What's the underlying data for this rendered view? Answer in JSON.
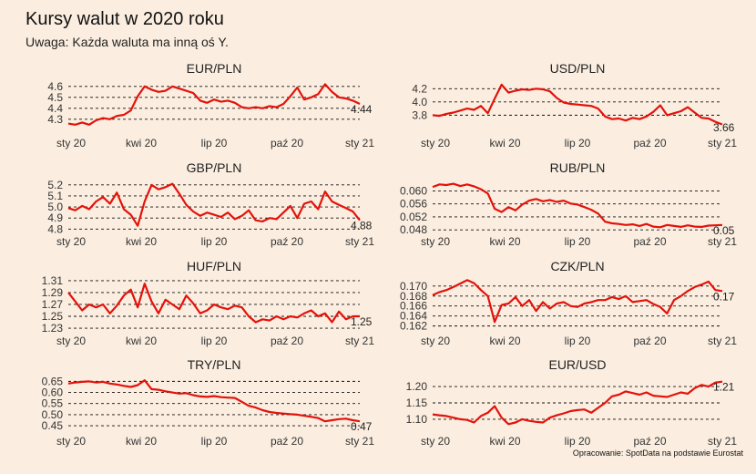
{
  "title": "Kursy walut w 2020 roku",
  "subtitle": "Uwaga: Każda waluta ma inną oś Y.",
  "source": "Opracowanie: SpotData na podstawie Eurostat",
  "colors": {
    "background": "#fbeee0",
    "series": "#e3120b"
  },
  "chart_data": [
    {
      "type": "line",
      "title": "EUR/PLN",
      "x_ticks": [
        "sty 20",
        "kwi 20",
        "lip 20",
        "paź 20",
        "sty 21"
      ],
      "y_ticks": [
        "4.3",
        "4.4",
        "4.5",
        "4.6"
      ],
      "y_tick_values": [
        4.3,
        4.4,
        4.5,
        4.6
      ],
      "ylim": [
        4.24,
        4.64
      ],
      "end_label": "4.44",
      "values": [
        4.26,
        4.25,
        4.27,
        4.25,
        4.29,
        4.31,
        4.3,
        4.33,
        4.34,
        4.38,
        4.51,
        4.6,
        4.57,
        4.55,
        4.56,
        4.6,
        4.58,
        4.56,
        4.54,
        4.47,
        4.45,
        4.48,
        4.46,
        4.47,
        4.45,
        4.41,
        4.4,
        4.41,
        4.4,
        4.42,
        4.41,
        4.44,
        4.51,
        4.59,
        4.48,
        4.5,
        4.53,
        4.62,
        4.55,
        4.5,
        4.49,
        4.47,
        4.44
      ]
    },
    {
      "type": "line",
      "title": "USD/PLN",
      "x_ticks": [
        "sty 20",
        "kwi 20",
        "lip 20",
        "paź 20",
        "sty 21"
      ],
      "y_ticks": [
        "3.8",
        "4.0",
        "4.2"
      ],
      "y_tick_values": [
        3.8,
        4.0,
        4.2
      ],
      "ylim": [
        3.64,
        4.3
      ],
      "end_label": "3.66",
      "values": [
        3.8,
        3.79,
        3.82,
        3.84,
        3.87,
        3.9,
        3.88,
        3.94,
        3.83,
        4.05,
        4.26,
        4.14,
        4.17,
        4.19,
        4.18,
        4.2,
        4.19,
        4.16,
        4.06,
        3.99,
        3.97,
        3.96,
        3.95,
        3.94,
        3.9,
        3.78,
        3.74,
        3.75,
        3.72,
        3.76,
        3.74,
        3.78,
        3.85,
        3.95,
        3.8,
        3.83,
        3.86,
        3.92,
        3.84,
        3.76,
        3.75,
        3.7,
        3.66
      ]
    },
    {
      "type": "line",
      "title": "GBP/PLN",
      "x_ticks": [
        "sty 20",
        "kwi 20",
        "lip 20",
        "paź 20",
        "sty 21"
      ],
      "y_ticks": [
        "4.8",
        "4.9",
        "5.0",
        "5.1",
        "5.2"
      ],
      "y_tick_values": [
        4.8,
        4.9,
        5.0,
        5.1,
        5.2
      ],
      "ylim": [
        4.77,
        5.24
      ],
      "end_label": "4.88",
      "values": [
        4.99,
        4.97,
        5.01,
        4.98,
        5.05,
        5.09,
        5.03,
        5.13,
        4.98,
        4.93,
        4.83,
        5.05,
        5.2,
        5.16,
        5.18,
        5.21,
        5.12,
        5.02,
        4.96,
        4.92,
        4.95,
        4.93,
        4.91,
        4.95,
        4.89,
        4.92,
        4.97,
        4.88,
        4.87,
        4.9,
        4.89,
        4.95,
        5.01,
        4.9,
        5.03,
        5.05,
        4.98,
        5.14,
        5.05,
        5.02,
        4.99,
        4.96,
        4.88
      ]
    },
    {
      "type": "line",
      "title": "RUB/PLN",
      "x_ticks": [
        "sty 20",
        "kwi 20",
        "lip 20",
        "paź 20",
        "sty 21"
      ],
      "y_ticks": [
        "0.048",
        "0.052",
        "0.056",
        "0.060"
      ],
      "y_tick_values": [
        0.048,
        0.052,
        0.056,
        0.06
      ],
      "ylim": [
        0.0472,
        0.0632
      ],
      "end_label": "0.05",
      "values": [
        0.0612,
        0.062,
        0.0618,
        0.0622,
        0.0615,
        0.062,
        0.0614,
        0.0605,
        0.0592,
        0.0545,
        0.0535,
        0.055,
        0.054,
        0.0558,
        0.057,
        0.0575,
        0.0568,
        0.0572,
        0.0566,
        0.057,
        0.0561,
        0.0558,
        0.055,
        0.0542,
        0.053,
        0.0505,
        0.05,
        0.0498,
        0.0495,
        0.0497,
        0.0492,
        0.0498,
        0.049,
        0.0488,
        0.0495,
        0.0492,
        0.0489,
        0.0494,
        0.049,
        0.0489,
        0.0493,
        0.0494,
        0.0495
      ]
    },
    {
      "type": "line",
      "title": "HUF/PLN",
      "x_ticks": [
        "sty 20",
        "kwi 20",
        "lip 20",
        "paź 20",
        "sty 21"
      ],
      "y_ticks": [
        "1.23",
        "1.25",
        "1.27",
        "1.29",
        "1.31"
      ],
      "y_tick_values": [
        1.23,
        1.25,
        1.27,
        1.29,
        1.31
      ],
      "ylim": [
        1.227,
        1.316
      ],
      "end_label": "1.25",
      "values": [
        1.29,
        1.275,
        1.26,
        1.27,
        1.265,
        1.27,
        1.255,
        1.268,
        1.285,
        1.295,
        1.265,
        1.305,
        1.275,
        1.255,
        1.278,
        1.27,
        1.262,
        1.285,
        1.272,
        1.255,
        1.26,
        1.27,
        1.265,
        1.262,
        1.268,
        1.265,
        1.25,
        1.24,
        1.245,
        1.243,
        1.25,
        1.245,
        1.25,
        1.248,
        1.255,
        1.26,
        1.25,
        1.255,
        1.24,
        1.258,
        1.245,
        1.25,
        1.25
      ]
    },
    {
      "type": "line",
      "title": "CZK/PLN",
      "x_ticks": [
        "sty 20",
        "kwi 20",
        "lip 20",
        "paź 20",
        "sty 21"
      ],
      "y_ticks": [
        "0.162",
        "0.164",
        "0.166",
        "0.168",
        "0.170"
      ],
      "y_tick_values": [
        0.162,
        0.164,
        0.166,
        0.168,
        0.17
      ],
      "ylim": [
        0.1612,
        0.1718
      ],
      "end_label": "0.17",
      "values": [
        0.1682,
        0.1688,
        0.1692,
        0.1698,
        0.1705,
        0.1712,
        0.1706,
        0.1692,
        0.168,
        0.1628,
        0.1662,
        0.1665,
        0.1678,
        0.166,
        0.1672,
        0.165,
        0.1668,
        0.1655,
        0.1665,
        0.1668,
        0.166,
        0.1658,
        0.1665,
        0.1668,
        0.1672,
        0.1672,
        0.1678,
        0.1674,
        0.168,
        0.1668,
        0.167,
        0.1672,
        0.1664,
        0.1658,
        0.1645,
        0.1672,
        0.168,
        0.169,
        0.1698,
        0.1703,
        0.1709,
        0.1692,
        0.169
      ]
    },
    {
      "type": "line",
      "title": "TRY/PLN",
      "x_ticks": [
        "sty 20",
        "kwi 20",
        "lip 20",
        "paź 20",
        "sty 21"
      ],
      "y_ticks": [
        "0.45",
        "0.50",
        "0.55",
        "0.60",
        "0.65"
      ],
      "y_tick_values": [
        0.45,
        0.5,
        0.55,
        0.6,
        0.65
      ],
      "ylim": [
        0.438,
        0.668
      ],
      "end_label": "0.47",
      "values": [
        0.64,
        0.645,
        0.648,
        0.65,
        0.645,
        0.648,
        0.64,
        0.636,
        0.63,
        0.625,
        0.633,
        0.655,
        0.615,
        0.612,
        0.605,
        0.6,
        0.595,
        0.597,
        0.588,
        0.582,
        0.58,
        0.584,
        0.579,
        0.577,
        0.575,
        0.558,
        0.54,
        0.532,
        0.52,
        0.512,
        0.508,
        0.505,
        0.502,
        0.5,
        0.495,
        0.49,
        0.485,
        0.47,
        0.475,
        0.48,
        0.482,
        0.475,
        0.47
      ]
    },
    {
      "type": "line",
      "title": "EUR/USD",
      "x_ticks": [
        "sty 20",
        "kwi 20",
        "lip 20",
        "paź 20",
        "sty 21"
      ],
      "y_ticks": [
        "1.10",
        "1.15",
        "1.20"
      ],
      "y_tick_values": [
        1.1,
        1.15,
        1.2
      ],
      "ylim": [
        1.072,
        1.228
      ],
      "end_label": "1.21",
      "values": [
        1.115,
        1.112,
        1.11,
        1.105,
        1.1,
        1.098,
        1.09,
        1.11,
        1.12,
        1.14,
        1.105,
        1.085,
        1.09,
        1.1,
        1.095,
        1.092,
        1.09,
        1.105,
        1.112,
        1.118,
        1.125,
        1.128,
        1.13,
        1.12,
        1.135,
        1.15,
        1.17,
        1.175,
        1.185,
        1.18,
        1.175,
        1.182,
        1.172,
        1.17,
        1.168,
        1.175,
        1.182,
        1.178,
        1.195,
        1.205,
        1.2,
        1.212,
        1.215
      ]
    }
  ]
}
